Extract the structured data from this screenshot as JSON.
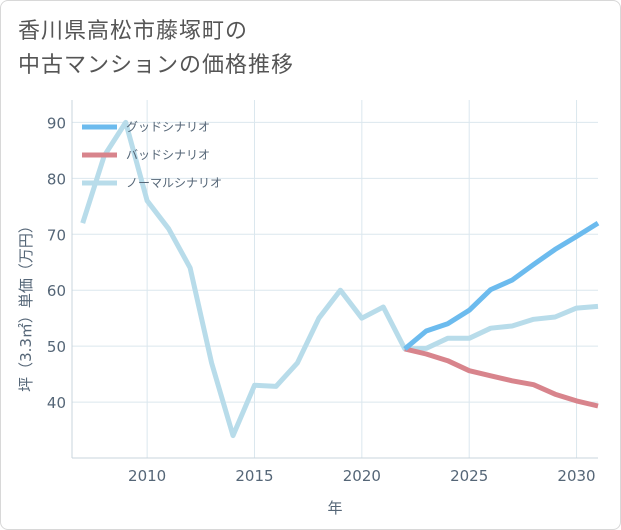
{
  "title_line1": "香川県高松市藤塚町の",
  "title_line2": "中古マンションの価格推移",
  "chart_data": {
    "type": "line",
    "title": "香川県高松市藤塚町の中古マンションの価格推移",
    "xlabel": "年",
    "ylabel": "坪（3.3㎡）単価（万円）",
    "xlim": [
      2006.5,
      2031
    ],
    "ylim": [
      30,
      94
    ],
    "xticks": [
      2010,
      2015,
      2020,
      2025,
      2030
    ],
    "yticks": [
      40,
      50,
      60,
      70,
      80,
      90
    ],
    "grid": true,
    "legend_position": "top-left",
    "series": [
      {
        "name": "グッドシナリオ",
        "color": "#6cbbee",
        "width": 5,
        "x": [
          2022,
          2023,
          2024,
          2025,
          2026,
          2027,
          2028,
          2029,
          2030,
          2031
        ],
        "values": [
          49.5,
          52.7,
          54.0,
          56.4,
          60.1,
          61.8,
          64.6,
          67.3,
          69.6,
          72.0
        ]
      },
      {
        "name": "バッドシナリオ",
        "color": "#d8848c",
        "width": 5,
        "x": [
          2022,
          2023,
          2024,
          2025,
          2026,
          2027,
          2028,
          2029,
          2030,
          2031
        ],
        "values": [
          49.5,
          48.6,
          47.4,
          45.6,
          44.7,
          43.8,
          43.1,
          41.4,
          40.2,
          39.3
        ]
      },
      {
        "name": "ノーマルシナリオ",
        "color": "#b8dcea",
        "width": 5,
        "x": [
          2007,
          2008,
          2009,
          2010,
          2011,
          2012,
          2013,
          2014,
          2015,
          2016,
          2017,
          2018,
          2019,
          2020,
          2021,
          2022,
          2023,
          2024,
          2025,
          2026,
          2027,
          2028,
          2029,
          2030,
          2031
        ],
        "values": [
          72.0,
          84.0,
          90.0,
          76.0,
          71.0,
          64.0,
          47.0,
          34.0,
          43.0,
          42.8,
          47.0,
          55.0,
          60.0,
          55.0,
          57.0,
          49.5,
          49.6,
          51.4,
          51.4,
          53.2,
          53.6,
          54.8,
          55.2,
          56.8,
          57.1
        ]
      }
    ]
  }
}
